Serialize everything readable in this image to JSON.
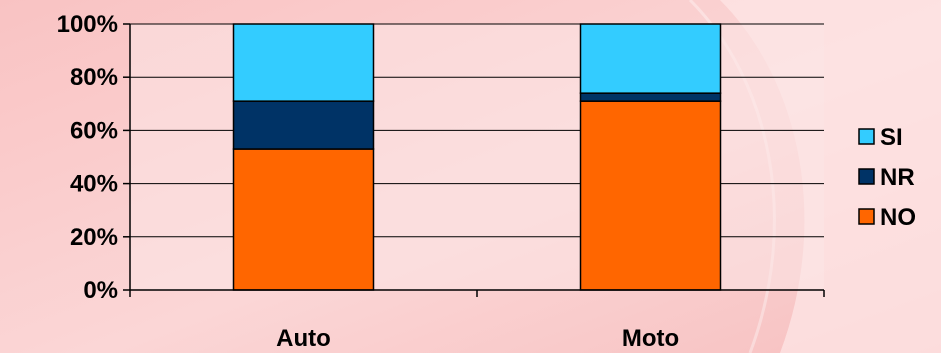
{
  "chart_data": {
    "type": "bar",
    "stacked": true,
    "percent": true,
    "categories": [
      "Auto",
      "Moto"
    ],
    "series": [
      {
        "name": "NO",
        "values": [
          53,
          71
        ],
        "color": "#FF6600"
      },
      {
        "name": "NR",
        "values": [
          18,
          3
        ],
        "color": "#003366"
      },
      {
        "name": "SI",
        "values": [
          29,
          26
        ],
        "color": "#33CCFF"
      }
    ],
    "ylim": [
      0,
      100
    ],
    "yticks": [
      "0%",
      "20%",
      "40%",
      "60%",
      "80%",
      "100%"
    ],
    "grid": true,
    "legend_position": "right",
    "legend_order": [
      "SI",
      "NR",
      "NO"
    ]
  }
}
